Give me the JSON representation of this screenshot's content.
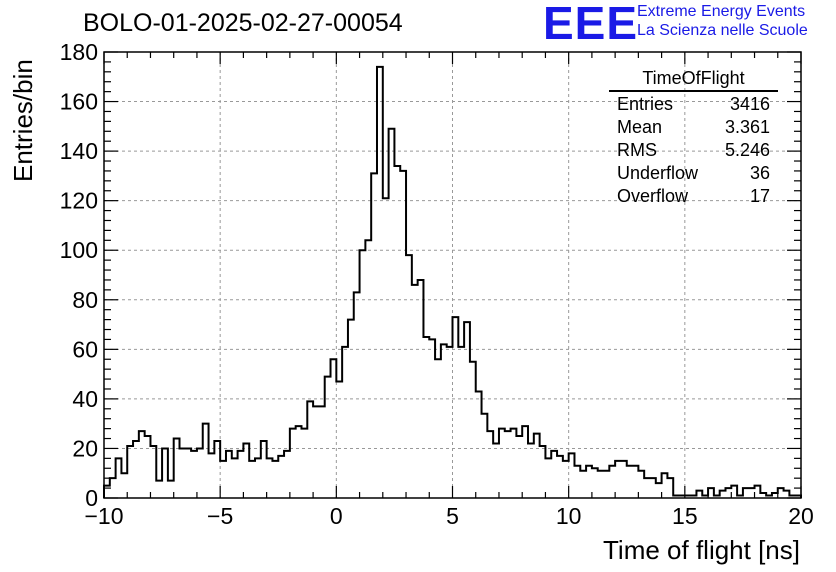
{
  "chart_data": {
    "type": "bar",
    "title": "BOLO-01-2025-02-27-00054",
    "xlabel": "Time of flight [ns]",
    "ylabel": "Entries/bin",
    "xlim": [
      -10,
      20
    ],
    "ylim": [
      0,
      180
    ],
    "grid": true,
    "bin_width": 0.25,
    "x_ticks": [
      "−10",
      "−5",
      "0",
      "5",
      "10",
      "15",
      "20"
    ],
    "y_ticks": [
      "0",
      "20",
      "40",
      "60",
      "80",
      "100",
      "120",
      "140",
      "160",
      "180"
    ],
    "values": [
      5,
      8,
      16,
      10,
      21,
      23,
      27,
      25,
      21,
      7,
      20,
      7,
      24,
      20,
      20,
      19,
      20,
      30,
      18,
      23,
      15,
      19,
      16,
      19,
      22,
      15,
      16,
      23,
      16,
      15,
      17,
      19,
      28,
      29,
      28,
      39,
      37,
      37,
      49,
      56,
      47,
      61,
      72,
      83,
      100,
      104,
      131,
      174,
      121,
      149,
      134,
      132,
      98,
      86,
      88,
      65,
      64,
      56,
      62,
      61,
      73,
      61,
      71,
      55,
      43,
      34,
      27,
      22,
      28,
      27,
      28,
      25,
      29,
      22,
      26,
      21,
      16,
      19,
      17,
      15,
      18,
      13,
      11,
      13,
      12,
      11,
      11,
      13,
      15,
      15,
      13,
      13,
      11,
      8,
      8,
      6,
      10,
      8,
      1,
      1,
      1,
      1,
      3,
      1,
      4,
      1,
      3,
      4,
      5,
      1,
      4,
      4,
      5,
      2,
      1,
      2,
      4,
      3,
      1,
      1
    ]
  },
  "logo": {
    "mark": "EEE",
    "line1": "Extreme Energy Events",
    "line2": "La Scienza nelle Scuole"
  },
  "stats": {
    "title": "TimeOfFlight",
    "rows": [
      {
        "label": "Entries",
        "value": "3416"
      },
      {
        "label": "Mean",
        "value": "3.361"
      },
      {
        "label": "RMS",
        "value": "5.246"
      },
      {
        "label": "Underflow",
        "value": "36"
      },
      {
        "label": "Overflow",
        "value": "17"
      }
    ]
  }
}
